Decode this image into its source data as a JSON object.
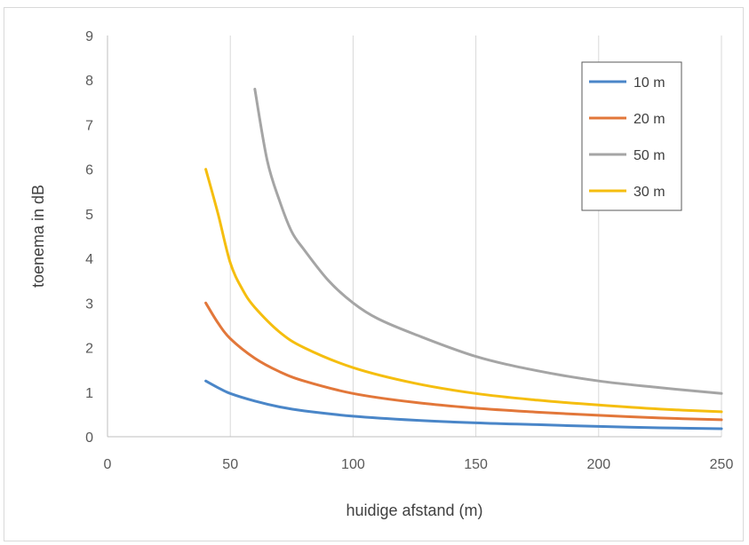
{
  "chart_data": {
    "type": "line",
    "title": "",
    "xlabel": "huidige afstand (m)",
    "ylabel": "toenema in dB",
    "xlim": [
      0,
      250
    ],
    "ylim": [
      0,
      9
    ],
    "xticks": [
      0,
      50,
      100,
      150,
      200,
      250
    ],
    "yticks": [
      0,
      1,
      2,
      3,
      4,
      5,
      6,
      7,
      8,
      9
    ],
    "grid": "vertical",
    "legend": "top-right",
    "series": [
      {
        "name": "10 m",
        "color": "#4a86c8",
        "x": [
          40,
          45,
          50,
          60,
          70,
          80,
          100,
          125,
          150,
          175,
          200,
          225,
          250
        ],
        "y": [
          1.25,
          1.1,
          0.97,
          0.8,
          0.67,
          0.58,
          0.46,
          0.37,
          0.31,
          0.27,
          0.23,
          0.2,
          0.18
        ]
      },
      {
        "name": "20 m",
        "color": "#e2773a",
        "x": [
          40,
          45,
          50,
          60,
          70,
          80,
          100,
          125,
          150,
          175,
          200,
          225,
          250
        ],
        "y": [
          3.0,
          2.55,
          2.2,
          1.76,
          1.46,
          1.25,
          0.97,
          0.77,
          0.64,
          0.55,
          0.48,
          0.42,
          0.38
        ]
      },
      {
        "name": "50 m",
        "color": "#a5a5a5",
        "x": [
          60,
          65,
          70,
          75,
          80,
          90,
          100,
          110,
          125,
          150,
          175,
          200,
          225,
          250
        ],
        "y": [
          7.8,
          6.2,
          5.3,
          4.6,
          4.2,
          3.5,
          3.0,
          2.65,
          2.3,
          1.8,
          1.48,
          1.25,
          1.1,
          0.97
        ]
      },
      {
        "name": "30 m",
        "color": "#f5be0f",
        "x": [
          40,
          45,
          50,
          55,
          60,
          70,
          80,
          100,
          125,
          150,
          175,
          200,
          225,
          250
        ],
        "y": [
          6.0,
          5.0,
          3.9,
          3.3,
          2.9,
          2.35,
          2.0,
          1.55,
          1.2,
          0.97,
          0.82,
          0.71,
          0.62,
          0.56
        ]
      }
    ]
  }
}
